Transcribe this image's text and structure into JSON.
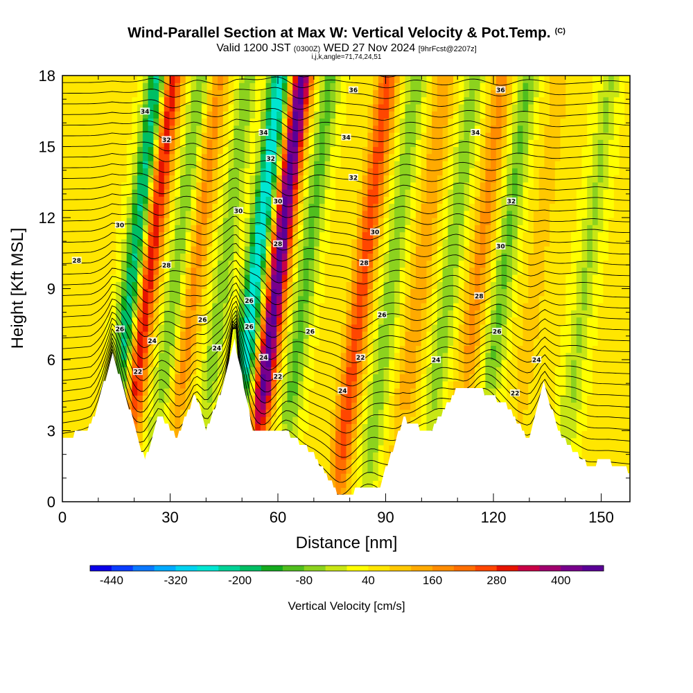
{
  "header": {
    "title": "Wind-Parallel Section at Max W: Vertical Velocity & Pot.Temp.",
    "copyright": "(C)",
    "valid_prefix": "Valid 1200 JST",
    "valid_utc": "(0300Z)",
    "valid_date": "WED 27 Nov 2024",
    "forecast": "[9hrFcst@2207z]",
    "params": "i,j,k,angle=71,74,24,51"
  },
  "chart_data": {
    "type": "heatmap",
    "xlabel": "Distance [nm]",
    "ylabel": "Height [Kft MSL]",
    "xlim": [
      0,
      158
    ],
    "ylim": [
      0,
      18
    ],
    "x_ticks": [
      0,
      30,
      60,
      90,
      120,
      150
    ],
    "y_ticks": [
      0,
      3,
      6,
      9,
      12,
      15,
      18
    ],
    "colorbar": {
      "title": "Vertical Velocity [cm/s]",
      "tick_labels": [
        "-440",
        "-320",
        "-200",
        "-80",
        "40",
        "160",
        "280",
        "400"
      ],
      "range": [
        -480,
        480
      ],
      "colors": [
        "#0a00e8",
        "#0a3cff",
        "#0a78ff",
        "#00aaff",
        "#00d2f0",
        "#00e6d2",
        "#00d296",
        "#00be64",
        "#14aa1e",
        "#50be1e",
        "#8cd21e",
        "#c8e614",
        "#ffff00",
        "#ffe600",
        "#ffc800",
        "#ffaa00",
        "#ff8c00",
        "#ff6e00",
        "#ff4600",
        "#e61400",
        "#c80046",
        "#a0006e",
        "#78008c",
        "#5a0096"
      ]
    },
    "terrain": [
      [
        0,
        2.6
      ],
      [
        8,
        3.2
      ],
      [
        14,
        6.2
      ],
      [
        18,
        4.3
      ],
      [
        23,
        1.7
      ],
      [
        27,
        3.7
      ],
      [
        32,
        2.7
      ],
      [
        37,
        4.6
      ],
      [
        40,
        3.0
      ],
      [
        45,
        5.0
      ],
      [
        48,
        6.8
      ],
      [
        53,
        3.0
      ],
      [
        62,
        3.0
      ],
      [
        70,
        2.0
      ],
      [
        77,
        0.3
      ],
      [
        83,
        0.5
      ],
      [
        88,
        0.5
      ],
      [
        95,
        3.5
      ],
      [
        102,
        2.9
      ],
      [
        110,
        4.8
      ],
      [
        116,
        4.8
      ],
      [
        124,
        4.0
      ],
      [
        130,
        2.6
      ],
      [
        134,
        5.0
      ],
      [
        138,
        3.0
      ],
      [
        142,
        2.2
      ],
      [
        146,
        1.6
      ],
      [
        152,
        1.7
      ],
      [
        158,
        1.3
      ]
    ],
    "series": [
      {
        "name": "downdraft",
        "center": 17,
        "amplitude": -280
      },
      {
        "name": "updraft",
        "center": 21,
        "amplitude": 290
      },
      {
        "name": "downdraft",
        "center": 29,
        "amplitude": -120
      },
      {
        "name": "updraft",
        "center": 34,
        "amplitude": 130
      },
      {
        "name": "downdraft",
        "center": 42,
        "amplitude": -110
      },
      {
        "name": "downdraft",
        "center": 51,
        "amplitude": -330
      },
      {
        "name": "updraft",
        "center": 57,
        "amplitude": 420
      },
      {
        "name": "downdraft",
        "center": 65,
        "amplitude": -140
      },
      {
        "name": "updraft",
        "center": 81,
        "amplitude": 220
      },
      {
        "name": "downdraft",
        "center": 89,
        "amplitude": -110
      },
      {
        "name": "updraft",
        "center": 97,
        "amplitude": 110
      },
      {
        "name": "downdraft",
        "center": 105,
        "amplitude": -110
      },
      {
        "name": "updraft",
        "center": 113,
        "amplitude": 130
      },
      {
        "name": "downdraft",
        "center": 120,
        "amplitude": -130
      },
      {
        "name": "updraft",
        "center": 129,
        "amplitude": 60
      },
      {
        "name": "downdraft",
        "center": 143,
        "amplitude": -90
      }
    ],
    "contour_labels": [
      {
        "text": "34",
        "x": 23,
        "y": 16.5
      },
      {
        "text": "32",
        "x": 29,
        "y": 15.3
      },
      {
        "text": "30",
        "x": 16,
        "y": 11.7
      },
      {
        "text": "28",
        "x": 4,
        "y": 10.2
      },
      {
        "text": "28",
        "x": 29,
        "y": 10.0
      },
      {
        "text": "26",
        "x": 16,
        "y": 7.3
      },
      {
        "text": "24",
        "x": 25,
        "y": 6.8
      },
      {
        "text": "22",
        "x": 21,
        "y": 5.5
      },
      {
        "text": "26",
        "x": 39,
        "y": 7.7
      },
      {
        "text": "24",
        "x": 43,
        "y": 6.5
      },
      {
        "text": "30",
        "x": 49,
        "y": 12.3
      },
      {
        "text": "34",
        "x": 56,
        "y": 15.6
      },
      {
        "text": "32",
        "x": 58,
        "y": 14.5
      },
      {
        "text": "30",
        "x": 60,
        "y": 12.7
      },
      {
        "text": "28",
        "x": 60,
        "y": 10.9
      },
      {
        "text": "26",
        "x": 52,
        "y": 8.5
      },
      {
        "text": "26",
        "x": 52,
        "y": 7.4
      },
      {
        "text": "24",
        "x": 56,
        "y": 6.1
      },
      {
        "text": "22",
        "x": 60,
        "y": 5.3
      },
      {
        "text": "26",
        "x": 69,
        "y": 7.2
      },
      {
        "text": "22",
        "x": 83,
        "y": 6.1
      },
      {
        "text": "24",
        "x": 78,
        "y": 4.7
      },
      {
        "text": "36",
        "x": 81,
        "y": 17.4
      },
      {
        "text": "34",
        "x": 79,
        "y": 15.4
      },
      {
        "text": "32",
        "x": 81,
        "y": 13.7
      },
      {
        "text": "30",
        "x": 87,
        "y": 11.4
      },
      {
        "text": "28",
        "x": 84,
        "y": 10.1
      },
      {
        "text": "26",
        "x": 89,
        "y": 7.9
      },
      {
        "text": "24",
        "x": 104,
        "y": 6.0
      },
      {
        "text": "36",
        "x": 122,
        "y": 17.4
      },
      {
        "text": "34",
        "x": 115,
        "y": 15.6
      },
      {
        "text": "32",
        "x": 125,
        "y": 12.7
      },
      {
        "text": "30",
        "x": 122,
        "y": 10.8
      },
      {
        "text": "28",
        "x": 116,
        "y": 8.7
      },
      {
        "text": "26",
        "x": 121,
        "y": 7.2
      },
      {
        "text": "24",
        "x": 132,
        "y": 6.0
      },
      {
        "text": "22",
        "x": 126,
        "y": 4.6
      }
    ]
  }
}
